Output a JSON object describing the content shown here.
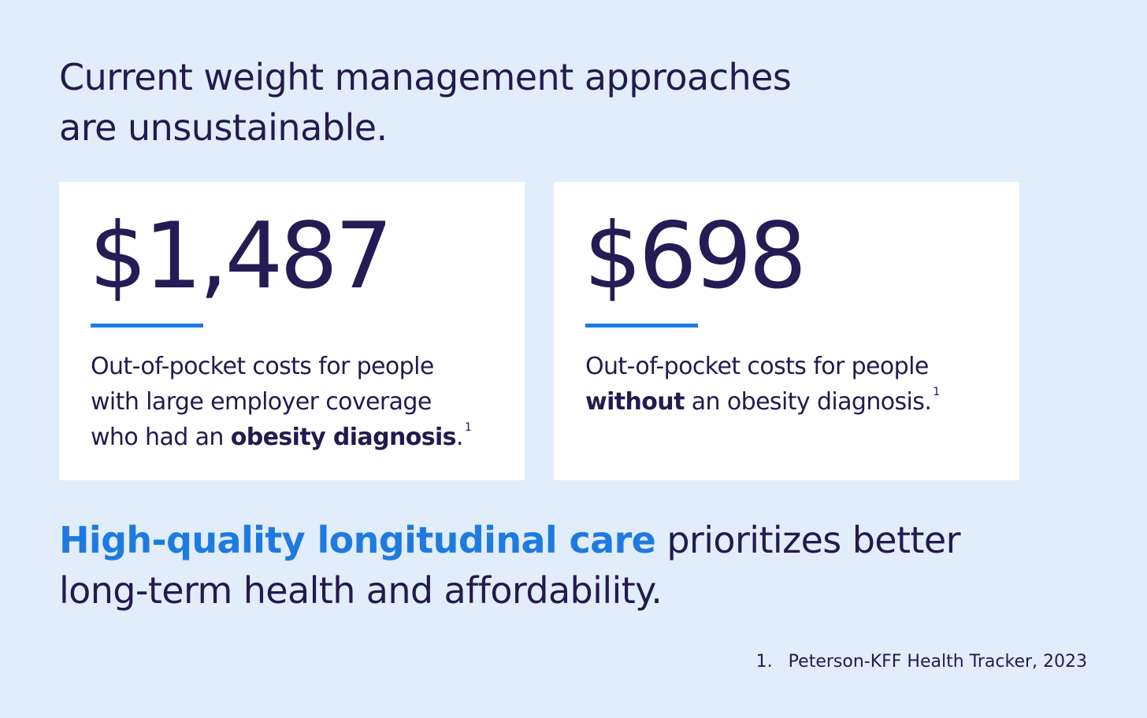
{
  "headline": {
    "line1": "Current weight management approaches",
    "line2": "are unsustainable."
  },
  "cards": [
    {
      "amount": "$1,487",
      "desc_line1": "Out-of-pocket costs for people",
      "desc_line2": "with large employer coverage",
      "desc_line3_pre": "who had an ",
      "desc_line3_bold": "obesity diagnosis",
      "desc_line3_post": ".",
      "footnote_ref": "1"
    },
    {
      "amount": "$698",
      "desc_line1": "Out-of-pocket costs for people",
      "desc_line2_bold": "without",
      "desc_line2_post": " an obesity diagnosis.",
      "footnote_ref": "1"
    }
  ],
  "tagline": {
    "accent": "High-quality longitudinal care",
    "rest_line1": " prioritizes better",
    "rest_line2": "long-term health and affordability."
  },
  "footnote": {
    "number": "1.",
    "text": "Peterson-KFF Health Tracker, 2023"
  },
  "colors": {
    "background": "#e1edfb",
    "card": "#ffffff",
    "text": "#231a4d",
    "accent": "#1f7ae0"
  }
}
